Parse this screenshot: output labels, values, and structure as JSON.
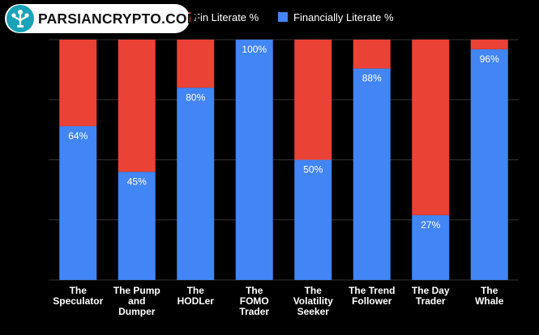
{
  "watermark": {
    "text": "PARSIANCRYPTO.COM",
    "color": "#1aa3b8"
  },
  "chart_data": {
    "type": "bar",
    "stacked": true,
    "categories": [
      [
        "The",
        "Speculator"
      ],
      [
        "The Pump",
        "and",
        "Dumper"
      ],
      [
        "The",
        "HODLer"
      ],
      [
        "The",
        "FOMO",
        "Trader"
      ],
      [
        "The",
        "Volatility",
        "Seeker"
      ],
      [
        "The Trend",
        "Follower"
      ],
      [
        "The Day",
        "Trader"
      ],
      [
        "The",
        "Whale"
      ]
    ],
    "series": [
      {
        "name": "Financially Literate %",
        "color": "#4285f4",
        "values": [
          64,
          45,
          80,
          100,
          50,
          88,
          27,
          96
        ]
      },
      {
        "name": "Fin Literate %",
        "color": "#ea4335",
        "values": [
          36,
          55,
          20,
          0,
          50,
          12,
          73,
          4
        ]
      }
    ],
    "data_labels": [
      "64%",
      "45%",
      "80%",
      "100%",
      "50%",
      "88%",
      "27%",
      "96%"
    ],
    "ylim": [
      0,
      100
    ],
    "grid": true,
    "legend_position": "top",
    "background": "#000000"
  }
}
